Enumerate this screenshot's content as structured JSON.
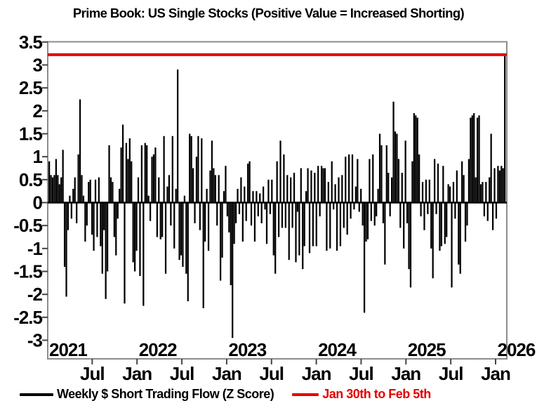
{
  "title": "Prime Book: US Single Stocks (Positive Value = Increased Shorting)",
  "colors": {
    "bar": "#000000",
    "highlight_red": "#e60000",
    "axis_frame": "#8c8c8c",
    "tick": "#444444",
    "text": "#000000",
    "background": "#ffffff"
  },
  "legend": [
    {
      "label": "Weekly $ Short Trading Flow (Z Score)",
      "color": "#000000"
    },
    {
      "label": "Jan 30th to Feb 5th",
      "color": "#e60000"
    }
  ],
  "chart_data": {
    "type": "bar",
    "title": "Prime Book: US Single Stocks (Positive Value = Increased Shorting)",
    "xlabel": "",
    "ylabel": "",
    "frequency": "weekly",
    "x_axis": {
      "start": "Jan 2021",
      "end": "Feb 2026",
      "month_tick_labels": [
        "Jul",
        "Jan",
        "Jul",
        "Jan",
        "Jul",
        "Jan",
        "Jul",
        "Jan",
        "Jul",
        "Jan"
      ],
      "year_labels": [
        "2021",
        "2022",
        "2023",
        "2024",
        "2025",
        "2026"
      ]
    },
    "y_axis": {
      "ticks": [
        3.5,
        3,
        2.5,
        2,
        1.5,
        1,
        0.5,
        0,
        -0.5,
        -1,
        -1.5,
        -2,
        -2.5,
        -3
      ],
      "min": -3.4,
      "max": 3.5,
      "grid": false
    },
    "red_line": {
      "value": 3.2,
      "label": "Jan 30th to Feb 5th"
    },
    "series": [
      {
        "name": "Weekly $ Short Trading Flow (Z Score)",
        "values": [
          0.9,
          0.6,
          0.55,
          0.6,
          0.95,
          0.6,
          0.4,
          0.55,
          1.15,
          -1.4,
          -2.05,
          -0.6,
          0.15,
          -0.35,
          0.3,
          0.55,
          -0.45,
          1.05,
          2.25,
          0.6,
          0.15,
          -0.85,
          -0.5,
          0.45,
          0.5,
          -0.7,
          -1.05,
          0.5,
          -0.75,
          0.55,
          -0.95,
          -1.55,
          -0.6,
          -2.1,
          -1.5,
          1.25,
          0.55,
          0.45,
          -0.75,
          -1.15,
          -0.35,
          0.3,
          1.2,
          1.7,
          -2.2,
          1.3,
          0.95,
          1.4,
          0.9,
          -1.3,
          -1.5,
          -1.05,
          0.55,
          -1.6,
          1.25,
          -2.25,
          1.3,
          1.25,
          0.15,
          -0.4,
          1.0,
          1.05,
          1.2,
          -0.75,
          0.55,
          -0.8,
          -0.75,
          1.45,
          -1.55,
          0.35,
          0.6,
          -0.5,
          1.45,
          -1.0,
          0.3,
          2.9,
          -1.25,
          -1.15,
          -1.4,
          0.15,
          -1.55,
          -2.15,
          1.5,
          1.45,
          0.75,
          -0.45,
          1.0,
          1.45,
          -0.6,
          1.4,
          -2.3,
          -0.85,
          0.3,
          -1.05,
          0.7,
          1.35,
          0.75,
          0.6,
          -0.5,
          0.6,
          -1.7,
          -1.2,
          0.25,
          0.8,
          -0.3,
          -0.65,
          -1.8,
          -2.95,
          -0.9,
          -0.45,
          0.3,
          -0.25,
          0.55,
          -0.85,
          0.35,
          -0.4,
          0.85,
          0.9,
          -0.5,
          0.25,
          -0.85,
          0.25,
          -0.3,
          0.2,
          -0.45,
          0.35,
          -0.15,
          -0.9,
          0.5,
          -0.25,
          0.5,
          -1.15,
          -1.55,
          0.9,
          -0.75,
          1.35,
          -0.55,
          1.05,
          -0.55,
          0.6,
          -1.25,
          0.55,
          -0.55,
          0.65,
          -1.3,
          -0.2,
          -1.15,
          0.75,
          -1.45,
          -0.95,
          0.25,
          0.75,
          -1.1,
          0.7,
          -0.95,
          0.65,
          -0.95,
          0.8,
          -0.3,
          0.8,
          0.75,
          0.75,
          -1.05,
          0.45,
          -1.0,
          0.9,
          -0.15,
          0.4,
          -1.05,
          0.55,
          -0.95,
          0.6,
          -0.55,
          1.0,
          -0.7,
          1.05,
          -0.35,
          1.05,
          -0.15,
          0.35,
          0.95,
          -0.2,
          0.3,
          -0.5,
          -2.4,
          -0.85,
          -0.8,
          0.95,
          -0.4,
          1.05,
          -0.5,
          -0.3,
          0.3,
          1.5,
          1.25,
          -0.45,
          -1.35,
          1.25,
          0.65,
          -0.3,
          0.55,
          2.2,
          1.55,
          1.5,
          0.95,
          -0.55,
          0.65,
          -1.0,
          1.35,
          -0.45,
          -1.45,
          -1.85,
          0.9,
          1.95,
          1.9,
          1.85,
          1.05,
          -0.3,
          0.45,
          -0.6,
          0.5,
          -0.25,
          0.5,
          -1.0,
          -1.65,
          0.95,
          -0.25,
          0.85,
          -1.05,
          -0.95,
          0.8,
          -0.9,
          -0.75,
          0.4,
          0.35,
          -1.85,
          0.45,
          -0.35,
          0.7,
          -1.35,
          -1.55,
          0.9,
          0.6,
          -0.85,
          -0.5,
          0.95,
          1.85,
          1.9,
          1.95,
          0.55,
          1.85,
          1.9,
          0.4,
          0.45,
          -0.3,
          0.45,
          -0.4,
          0.55,
          1.5,
          -0.6,
          0.75,
          -0.35,
          0.8,
          0.7,
          0.8,
          0.75,
          3.2
        ]
      }
    ]
  }
}
